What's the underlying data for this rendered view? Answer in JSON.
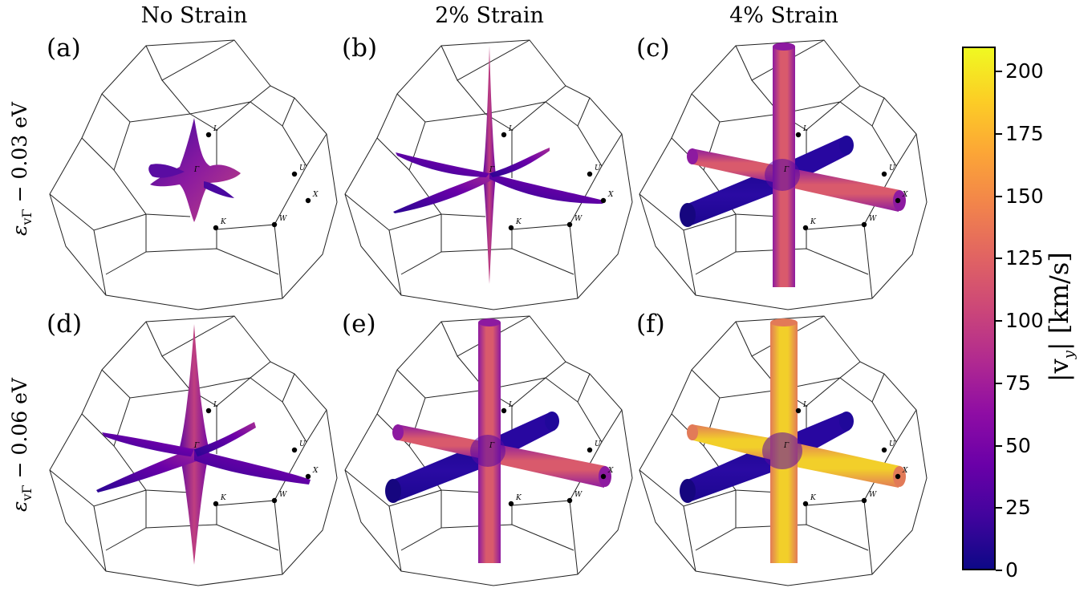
{
  "column_titles": [
    "No Strain",
    "2% Strain",
    "4% Strain"
  ],
  "row_labels": [
    {
      "symbol": "ε",
      "sub": "vΓ",
      "rest": " − 0.03 eV"
    },
    {
      "symbol": "ε",
      "sub": "vΓ",
      "rest": " − 0.06 eV"
    }
  ],
  "panels": [
    {
      "letter": "(a)",
      "shape": "small-star"
    },
    {
      "letter": "(b)",
      "shape": "thin-star"
    },
    {
      "letter": "(c)",
      "shape": "cylinders"
    },
    {
      "letter": "(d)",
      "shape": "big-star"
    },
    {
      "letter": "(e)",
      "shape": "cylinders"
    },
    {
      "letter": "(f)",
      "shape": "cylinders"
    }
  ],
  "bz_points": {
    "L": "L",
    "U": "U",
    "X": "X",
    "K": "K",
    "W": "W",
    "G": "Γ"
  },
  "colorbar": {
    "title_base": "|v",
    "title_sub": "y",
    "title_end": "| [km/s]",
    "min": 0,
    "max": 210,
    "ticks": [
      "0",
      "25",
      "50",
      "75",
      "100",
      "125",
      "150",
      "175",
      "200"
    ],
    "tick_values": [
      0,
      25,
      50,
      75,
      100,
      125,
      150,
      175,
      200
    ],
    "colormap": "plasma"
  }
}
